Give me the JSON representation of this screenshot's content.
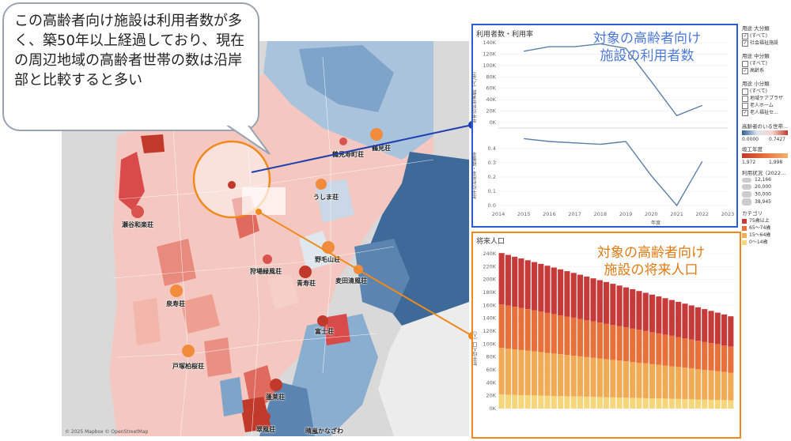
{
  "callout": {
    "text": "この高齢者向け施設は利用者数が多く、築50年以上経過しており、現在の周辺地域の高齢者世帯の数は沿岸部と比較すると多い"
  },
  "map": {
    "credit": "© 2025 Mapbox © OpenStreetMap",
    "places": [
      {
        "id": "p1",
        "label": "鶴見荘"
      },
      {
        "id": "p2",
        "label": "鶴見寿町荘"
      },
      {
        "id": "p3",
        "label": "うしま荘"
      },
      {
        "id": "p4",
        "label": "瀬谷和楽荘"
      },
      {
        "id": "p5",
        "label": "狩場緑風荘"
      },
      {
        "id": "p6",
        "label": "野毛山荘"
      },
      {
        "id": "p7",
        "label": "青寿荘"
      },
      {
        "id": "p8",
        "label": "麦田清風荘"
      },
      {
        "id": "p9",
        "label": "泉寿荘"
      },
      {
        "id": "p10",
        "label": "富士荘"
      },
      {
        "id": "p11",
        "label": "戸塚柏桜荘"
      },
      {
        "id": "p12",
        "label": "蓬莱荘"
      },
      {
        "id": "p13",
        "label": "翠風荘"
      },
      {
        "id": "p14",
        "label": "晴嵐かなざわ"
      }
    ]
  },
  "usage_panel": {
    "title": "利用者数・利用率",
    "annotation": "対象の高齢者向け\n施設の利用者数",
    "ylabel_top": "年平均利用者数（人/年）",
    "ylabel_bottom": "年平均利用率・稼働率",
    "xlabel": "年度",
    "chart_data": {
      "type": "line",
      "x": [
        2015,
        2016,
        2017,
        2018,
        2019,
        2020,
        2021,
        2022,
        2023
      ],
      "series": [
        {
          "values": [
            125000,
            133000,
            133000,
            138000,
            130000,
            72000,
            12000,
            30000,
            null
          ]
        },
        {
          "values": [
            0.47,
            0.45,
            0.44,
            0.43,
            0.45,
            0.21,
            0.0,
            0.31,
            null
          ]
        }
      ],
      "x_ticks": [
        "2014",
        "2015",
        "2016",
        "2017",
        "2018",
        "2019",
        "2020",
        "2021",
        "2022",
        "2023"
      ],
      "y_ticks_top": [
        "0K",
        "20K",
        "40K",
        "60K",
        "80K",
        "100K",
        "120K",
        "140K"
      ],
      "y_ticks_bottom": [
        "0.0",
        "0.1",
        "0.2",
        "0.3",
        "0.4"
      ]
    }
  },
  "future_panel": {
    "title": "将来人口",
    "annotation": "対象の高齢者向け\n施設の将来人口",
    "ylabel": "年平均人口（人）",
    "chart_data": {
      "type": "bar",
      "y_ticks": [
        "0K",
        "20K",
        "40K",
        "60K",
        "80K",
        "100K",
        "120K",
        "140K",
        "160K",
        "180K",
        "200K",
        "220K",
        "240K"
      ],
      "ylim": [
        0,
        240000
      ],
      "series_colors": [
        "#f5d67a",
        "#f2ab55",
        "#e8703a",
        "#c63a3a"
      ],
      "n_bars": 36,
      "total_start": 241000,
      "total_end": 143000,
      "shares": [
        0.09,
        0.3,
        0.28,
        0.33
      ]
    }
  },
  "legend": {
    "filter1_title": "用途 大分類",
    "filter1_items": [
      "(すべて)",
      "社会福祉施設"
    ],
    "filter2_title": "用途 中分類",
    "filter2_items": [
      "(すべて)",
      "高齢系"
    ],
    "filter3_title": "用途 小分類",
    "filter3_items": [
      "(すべて)",
      "地域ケアプラザ",
      "老人ホーム",
      "老人福祉セ..."
    ],
    "ratio_title": "高齢者のいる世帯...",
    "ratio_min": "0.0000",
    "ratio_max": "0.7427",
    "year_title": "竣工年度",
    "year_min": "1,972",
    "year_max": "1,998",
    "usage_title": "利用状況（2022...",
    "usage_values": [
      "12,166",
      "20,000",
      "30,000",
      "38,945"
    ],
    "category_title": "カテゴリ",
    "category_items": [
      "75歳以上",
      "65〜74歳",
      "15〜64歳",
      "0〜14歳"
    ],
    "category_colors": [
      "#c63a3a",
      "#e8703a",
      "#f2ab55",
      "#f5d67a"
    ]
  }
}
